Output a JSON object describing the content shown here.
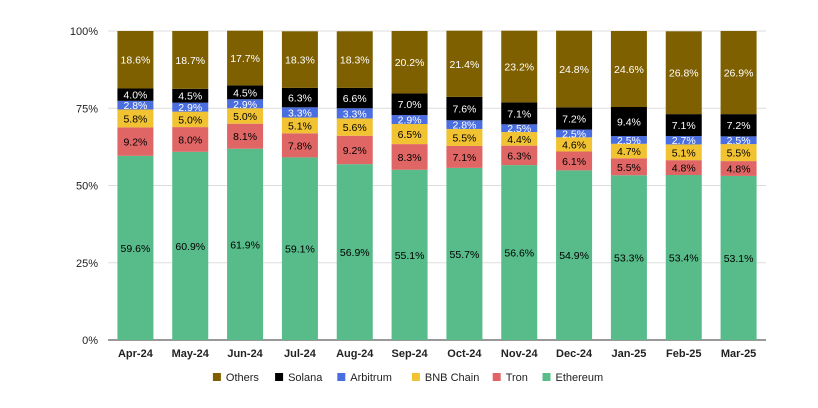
{
  "chart_data": {
    "type": "bar",
    "stacked": true,
    "normalized": true,
    "categories": [
      "Apr-24",
      "May-24",
      "Jun-24",
      "Jul-24",
      "Aug-24",
      "Sep-24",
      "Oct-24",
      "Nov-24",
      "Dec-24",
      "Jan-25",
      "Feb-25",
      "Mar-25"
    ],
    "y_ticks": [
      "0%",
      "25%",
      "50%",
      "75%",
      "100%"
    ],
    "ylim": [
      0,
      100
    ],
    "legend_position": "bottom",
    "series": [
      {
        "name": "Ethereum",
        "color": "#57bb8a",
        "label_color": "#000000",
        "values": [
          59.6,
          60.9,
          61.9,
          59.1,
          56.9,
          55.1,
          55.7,
          56.6,
          54.9,
          53.3,
          53.4,
          53.1
        ],
        "labels": [
          "59.6%",
          "60.9%",
          "61.9%",
          "59.1%",
          "56.9%",
          "55.1%",
          "55.7%",
          "56.6%",
          "54.9%",
          "53.3%",
          "53.4%",
          "53.1%"
        ]
      },
      {
        "name": "Tron",
        "color": "#e06666",
        "label_color": "#000000",
        "values": [
          9.2,
          8.0,
          8.1,
          7.8,
          9.2,
          8.3,
          7.1,
          6.3,
          6.1,
          5.5,
          4.8,
          4.8
        ],
        "labels": [
          "9.2%",
          "8.0%",
          "8.1%",
          "7.8%",
          "9.2%",
          "8.3%",
          "7.1%",
          "6.3%",
          "6.1%",
          "5.5%",
          "4.8%",
          "4.8%"
        ]
      },
      {
        "name": "BNB Chain",
        "color": "#f1c232",
        "label_color": "#000000",
        "values": [
          5.8,
          5.0,
          5.0,
          5.1,
          5.6,
          6.5,
          5.5,
          4.4,
          4.6,
          4.7,
          5.1,
          5.5
        ],
        "labels": [
          "5.8%",
          "5.0%",
          "5.0%",
          "5.1%",
          "5.6%",
          "6.5%",
          "5.5%",
          "4.4%",
          "4.6%",
          "4.7%",
          "5.1%",
          "5.5%"
        ]
      },
      {
        "name": "Arbitrum",
        "color": "#4a6ee0",
        "label_color": "#ffffff",
        "values": [
          2.8,
          2.9,
          2.9,
          3.3,
          3.3,
          2.9,
          2.8,
          2.5,
          2.5,
          2.5,
          2.7,
          2.5
        ],
        "labels": [
          "2.8%",
          "2.9%",
          "2.9%",
          "3.3%",
          "3.3%",
          "2.9%",
          "2.8%",
          "2.5%",
          "2.5%",
          "2.5%",
          "2.7%",
          "2.5%"
        ]
      },
      {
        "name": "Solana",
        "color": "#000000",
        "label_color": "#ffffff",
        "values": [
          4.0,
          4.5,
          4.5,
          6.3,
          6.6,
          7.0,
          7.6,
          7.1,
          7.2,
          9.4,
          7.1,
          7.2
        ],
        "labels": [
          "4.0%",
          "4.5%",
          "4.5%",
          "6.3%",
          "6.6%",
          "7.0%",
          "7.6%",
          "7.1%",
          "7.2%",
          "9.4%",
          "7.1%",
          "7.2%"
        ]
      },
      {
        "name": "Others",
        "color": "#7f6000",
        "label_color": "#ffffff",
        "values": [
          18.6,
          18.7,
          17.7,
          18.3,
          18.3,
          20.2,
          21.4,
          23.2,
          24.8,
          24.6,
          26.8,
          26.9
        ],
        "labels": [
          "18.6%",
          "18.7%",
          "17.7%",
          "18.3%",
          "18.3%",
          "20.2%",
          "21.4%",
          "23.2%",
          "24.8%",
          "24.6%",
          "26.8%",
          "26.9%"
        ]
      }
    ],
    "legend_order": [
      "Others",
      "Solana",
      "Arbitrum",
      "BNB Chain",
      "Tron",
      "Ethereum"
    ]
  }
}
